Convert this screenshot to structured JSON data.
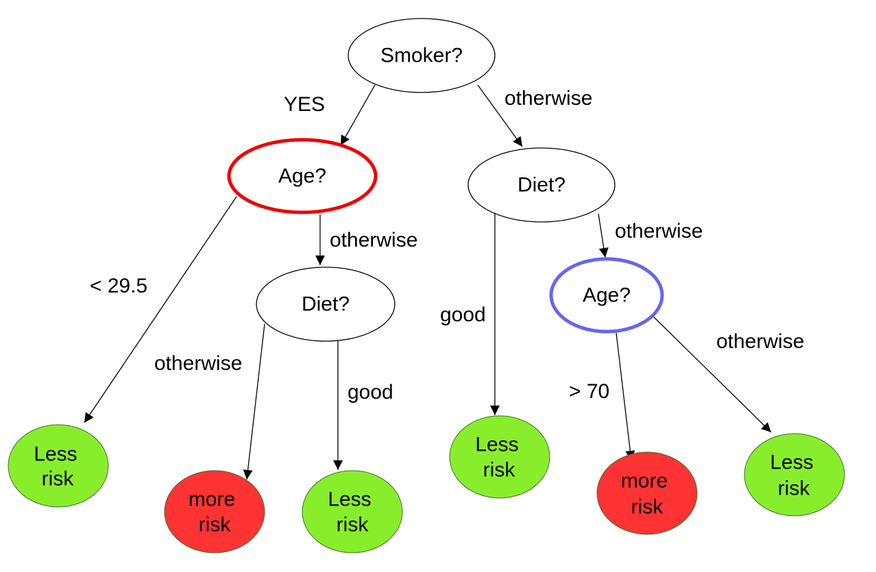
{
  "colors": {
    "question_fill": "#ffffff",
    "question_stroke": "#000000",
    "less_risk_fill": "#88ee2c",
    "more_risk_fill": "#ff3333",
    "outcome_stroke": "#3f6f2a",
    "highlight_red": "#ee0000",
    "highlight_blue": "#6666ee"
  },
  "nodes": {
    "root": {
      "label": "Smoker?"
    },
    "age_left": {
      "label": "Age?"
    },
    "diet_right": {
      "label": "Diet?"
    },
    "diet_mid": {
      "label": "Diet?"
    },
    "age_right": {
      "label": "Age?"
    },
    "leaf1": {
      "lines": [
        "Less",
        "risk"
      ]
    },
    "leaf2": {
      "lines": [
        "more",
        "risk"
      ]
    },
    "leaf3": {
      "lines": [
        "Less",
        "risk"
      ]
    },
    "leaf4": {
      "lines": [
        "Less",
        "risk"
      ]
    },
    "leaf5": {
      "lines": [
        "more",
        "risk"
      ]
    },
    "leaf6": {
      "lines": [
        "Less",
        "risk"
      ]
    }
  },
  "edges": {
    "root_yes": "YES",
    "root_otherwise": "otherwise",
    "ageleft_lt": "< 29.5",
    "ageleft_otherwise": "otherwise",
    "dietmid_otherwise": "otherwise",
    "dietmid_good": "good",
    "dietright_good": "good",
    "dietright_otherwise": "otherwise",
    "ageright_gt": "> 70",
    "ageright_otherwise": "otherwise"
  }
}
